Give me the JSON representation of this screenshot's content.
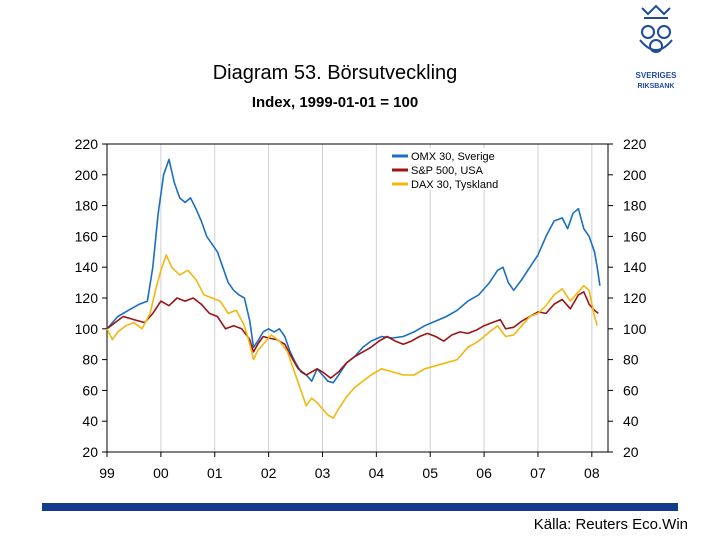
{
  "title": "Diagram 53. Börsutveckling",
  "subtitle": "Index, 1999-01-01 = 100",
  "source": "Källa: Reuters Eco.Win",
  "logo": {
    "icon": "riksbank-crown-logo-icon",
    "text_lines": [
      "SVERIGES",
      "RIKSBANK"
    ],
    "color": "#1f4aa0"
  },
  "footer_bar_color": "#123a8e",
  "chart_data": {
    "type": "line",
    "title": "Diagram 53. Börsutveckling",
    "subtitle": "Index, 1999-01-01 = 100",
    "x_ticks": [
      "99",
      "00",
      "01",
      "02",
      "03",
      "04",
      "05",
      "06",
      "07",
      "08"
    ],
    "x_tick_values": [
      1999,
      2000,
      2001,
      2002,
      2003,
      2004,
      2005,
      2006,
      2007,
      2008
    ],
    "xlim": [
      1999,
      2008.3
    ],
    "ylim": [
      20,
      220
    ],
    "y_ticks": [
      20,
      40,
      60,
      80,
      100,
      120,
      140,
      160,
      180,
      200,
      220
    ],
    "y_axis_both_sides": true,
    "grid": "vertical",
    "legend_position": "top-right",
    "series": [
      {
        "name": "OMX 30, Sverige",
        "color": "#1b6fc0",
        "points": [
          [
            1999.0,
            100
          ],
          [
            1999.2,
            108
          ],
          [
            1999.4,
            112
          ],
          [
            1999.6,
            116
          ],
          [
            1999.75,
            118
          ],
          [
            1999.85,
            140
          ],
          [
            1999.95,
            175
          ],
          [
            2000.05,
            200
          ],
          [
            2000.15,
            210
          ],
          [
            2000.25,
            195
          ],
          [
            2000.35,
            185
          ],
          [
            2000.45,
            182
          ],
          [
            2000.55,
            185
          ],
          [
            2000.65,
            178
          ],
          [
            2000.75,
            170
          ],
          [
            2000.85,
            160
          ],
          [
            2000.95,
            155
          ],
          [
            2001.05,
            150
          ],
          [
            2001.15,
            140
          ],
          [
            2001.25,
            130
          ],
          [
            2001.35,
            125
          ],
          [
            2001.45,
            122
          ],
          [
            2001.55,
            120
          ],
          [
            2001.65,
            105
          ],
          [
            2001.72,
            88
          ],
          [
            2001.8,
            92
          ],
          [
            2001.9,
            98
          ],
          [
            2002.0,
            100
          ],
          [
            2002.1,
            98
          ],
          [
            2002.2,
            100
          ],
          [
            2002.3,
            95
          ],
          [
            2002.4,
            85
          ],
          [
            2002.5,
            78
          ],
          [
            2002.6,
            72
          ],
          [
            2002.7,
            70
          ],
          [
            2002.8,
            66
          ],
          [
            2002.9,
            74
          ],
          [
            2003.0,
            70
          ],
          [
            2003.1,
            66
          ],
          [
            2003.2,
            65
          ],
          [
            2003.3,
            70
          ],
          [
            2003.45,
            78
          ],
          [
            2003.6,
            82
          ],
          [
            2003.75,
            88
          ],
          [
            2003.9,
            92
          ],
          [
            2004.1,
            95
          ],
          [
            2004.3,
            94
          ],
          [
            2004.5,
            95
          ],
          [
            2004.7,
            98
          ],
          [
            2004.9,
            102
          ],
          [
            2005.1,
            105
          ],
          [
            2005.3,
            108
          ],
          [
            2005.5,
            112
          ],
          [
            2005.7,
            118
          ],
          [
            2005.9,
            122
          ],
          [
            2006.1,
            130
          ],
          [
            2006.25,
            138
          ],
          [
            2006.35,
            140
          ],
          [
            2006.45,
            130
          ],
          [
            2006.55,
            125
          ],
          [
            2006.7,
            132
          ],
          [
            2006.85,
            140
          ],
          [
            2007.0,
            148
          ],
          [
            2007.15,
            160
          ],
          [
            2007.3,
            170
          ],
          [
            2007.45,
            172
          ],
          [
            2007.55,
            165
          ],
          [
            2007.65,
            175
          ],
          [
            2007.75,
            178
          ],
          [
            2007.85,
            165
          ],
          [
            2007.95,
            160
          ],
          [
            2008.05,
            150
          ],
          [
            2008.1,
            140
          ],
          [
            2008.15,
            128
          ]
        ]
      },
      {
        "name": "S&P 500, USA",
        "color": "#9c1414",
        "points": [
          [
            1999.0,
            100
          ],
          [
            1999.15,
            104
          ],
          [
            1999.3,
            108
          ],
          [
            1999.5,
            106
          ],
          [
            1999.7,
            104
          ],
          [
            1999.85,
            110
          ],
          [
            2000.0,
            118
          ],
          [
            2000.15,
            115
          ],
          [
            2000.3,
            120
          ],
          [
            2000.45,
            118
          ],
          [
            2000.6,
            120
          ],
          [
            2000.75,
            116
          ],
          [
            2000.9,
            110
          ],
          [
            2001.05,
            108
          ],
          [
            2001.2,
            100
          ],
          [
            2001.35,
            102
          ],
          [
            2001.5,
            100
          ],
          [
            2001.65,
            93
          ],
          [
            2001.72,
            85
          ],
          [
            2001.8,
            90
          ],
          [
            2001.9,
            95
          ],
          [
            2002.0,
            94
          ],
          [
            2002.15,
            93
          ],
          [
            2002.3,
            90
          ],
          [
            2002.45,
            80
          ],
          [
            2002.55,
            74
          ],
          [
            2002.7,
            70
          ],
          [
            2002.8,
            72
          ],
          [
            2002.9,
            74
          ],
          [
            2003.0,
            72
          ],
          [
            2003.15,
            68
          ],
          [
            2003.3,
            72
          ],
          [
            2003.45,
            78
          ],
          [
            2003.6,
            82
          ],
          [
            2003.75,
            85
          ],
          [
            2003.9,
            88
          ],
          [
            2004.05,
            92
          ],
          [
            2004.2,
            95
          ],
          [
            2004.35,
            92
          ],
          [
            2004.5,
            90
          ],
          [
            2004.65,
            92
          ],
          [
            2004.8,
            95
          ],
          [
            2004.95,
            97
          ],
          [
            2005.1,
            95
          ],
          [
            2005.25,
            92
          ],
          [
            2005.4,
            96
          ],
          [
            2005.55,
            98
          ],
          [
            2005.7,
            97
          ],
          [
            2005.85,
            99
          ],
          [
            2006.0,
            102
          ],
          [
            2006.15,
            104
          ],
          [
            2006.3,
            106
          ],
          [
            2006.4,
            100
          ],
          [
            2006.55,
            101
          ],
          [
            2006.7,
            105
          ],
          [
            2006.85,
            108
          ],
          [
            2007.0,
            111
          ],
          [
            2007.15,
            110
          ],
          [
            2007.3,
            116
          ],
          [
            2007.45,
            119
          ],
          [
            2007.6,
            113
          ],
          [
            2007.75,
            122
          ],
          [
            2007.85,
            124
          ],
          [
            2007.95,
            116
          ],
          [
            2008.05,
            112
          ],
          [
            2008.12,
            110
          ]
        ]
      },
      {
        "name": "DAX 30, Tyskland",
        "color": "#f2b80f",
        "points": [
          [
            1999.0,
            100
          ],
          [
            1999.1,
            93
          ],
          [
            1999.2,
            98
          ],
          [
            1999.35,
            102
          ],
          [
            1999.5,
            104
          ],
          [
            1999.65,
            100
          ],
          [
            1999.8,
            110
          ],
          [
            1999.9,
            125
          ],
          [
            2000.0,
            138
          ],
          [
            2000.1,
            148
          ],
          [
            2000.2,
            140
          ],
          [
            2000.35,
            135
          ],
          [
            2000.5,
            138
          ],
          [
            2000.65,
            132
          ],
          [
            2000.8,
            122
          ],
          [
            2000.95,
            120
          ],
          [
            2001.1,
            118
          ],
          [
            2001.25,
            110
          ],
          [
            2001.4,
            112
          ],
          [
            2001.55,
            102
          ],
          [
            2001.65,
            90
          ],
          [
            2001.72,
            80
          ],
          [
            2001.8,
            86
          ],
          [
            2001.95,
            92
          ],
          [
            2002.05,
            96
          ],
          [
            2002.2,
            92
          ],
          [
            2002.35,
            85
          ],
          [
            2002.5,
            70
          ],
          [
            2002.6,
            60
          ],
          [
            2002.7,
            50
          ],
          [
            2002.8,
            55
          ],
          [
            2002.9,
            52
          ],
          [
            2003.0,
            48
          ],
          [
            2003.1,
            44
          ],
          [
            2003.2,
            42
          ],
          [
            2003.3,
            48
          ],
          [
            2003.45,
            56
          ],
          [
            2003.6,
            62
          ],
          [
            2003.75,
            66
          ],
          [
            2003.9,
            70
          ],
          [
            2004.1,
            74
          ],
          [
            2004.3,
            72
          ],
          [
            2004.5,
            70
          ],
          [
            2004.7,
            70
          ],
          [
            2004.9,
            74
          ],
          [
            2005.1,
            76
          ],
          [
            2005.3,
            78
          ],
          [
            2005.5,
            80
          ],
          [
            2005.7,
            88
          ],
          [
            2005.9,
            92
          ],
          [
            2006.1,
            98
          ],
          [
            2006.25,
            102
          ],
          [
            2006.4,
            95
          ],
          [
            2006.55,
            96
          ],
          [
            2006.7,
            102
          ],
          [
            2006.85,
            108
          ],
          [
            2007.0,
            110
          ],
          [
            2007.15,
            115
          ],
          [
            2007.3,
            122
          ],
          [
            2007.45,
            126
          ],
          [
            2007.6,
            118
          ],
          [
            2007.75,
            124
          ],
          [
            2007.85,
            128
          ],
          [
            2007.95,
            125
          ],
          [
            2008.05,
            108
          ],
          [
            2008.1,
            102
          ]
        ]
      }
    ]
  }
}
